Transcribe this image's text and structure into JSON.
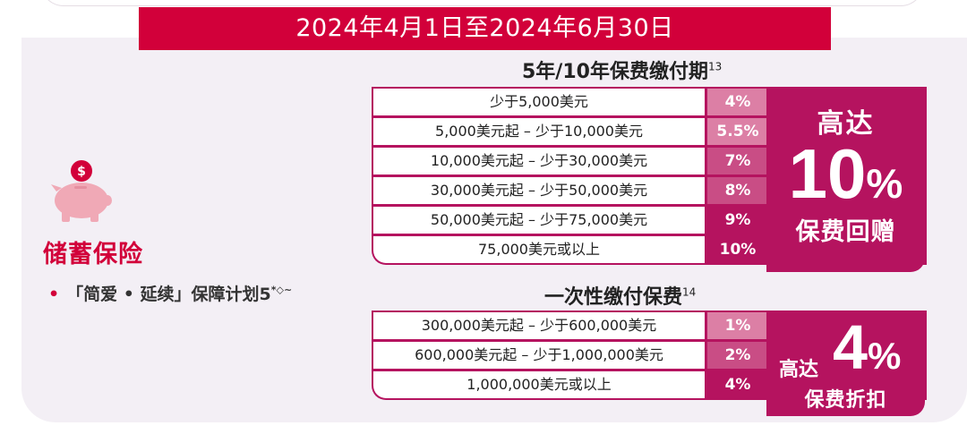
{
  "date_banner": "2024年4月1日至2024年6月30日",
  "category": {
    "title": "储蓄保险",
    "plan_bullet": "•",
    "plan_name": "「简爱 • 延续」保障计划5",
    "plan_sup": "*◇~",
    "icon": "piggy-bank-dollar-icon"
  },
  "colors": {
    "brand_red": "#d2003a",
    "magenta": "#b5135f",
    "rate_light": "#dc7fa5",
    "rate_mid": "#c94d85"
  },
  "section1": {
    "heading": "5年/10年保费缴付期",
    "heading_sup": "13",
    "rows": [
      {
        "range": "少于5,000美元",
        "rate": "4%"
      },
      {
        "range": "5,000美元起 – 少于10,000美元",
        "rate": "5.5%"
      },
      {
        "range": "10,000美元起 – 少于30,000美元",
        "rate": "7%"
      },
      {
        "range": "30,000美元起 – 少于50,000美元",
        "rate": "8%"
      },
      {
        "range": "50,000美元起 – 少于75,000美元",
        "rate": "9%"
      },
      {
        "range": "75,000美元或以上",
        "rate": "10%"
      }
    ],
    "summary_top": "高达",
    "summary_number": "10",
    "summary_percent": "%",
    "summary_bottom": "保费回赠"
  },
  "section2": {
    "heading": "一次性缴付保费",
    "heading_sup": "14",
    "rows": [
      {
        "range": "300,000美元起 – 少于600,000美元",
        "rate": "1%"
      },
      {
        "range": "600,000美元起 – 少于1,000,000美元",
        "rate": "2%"
      },
      {
        "range": "1,000,000美元或以上",
        "rate": "4%"
      }
    ],
    "summary_top": "高达",
    "summary_number": "4",
    "summary_percent": "%",
    "summary_bottom": "保费折扣"
  }
}
